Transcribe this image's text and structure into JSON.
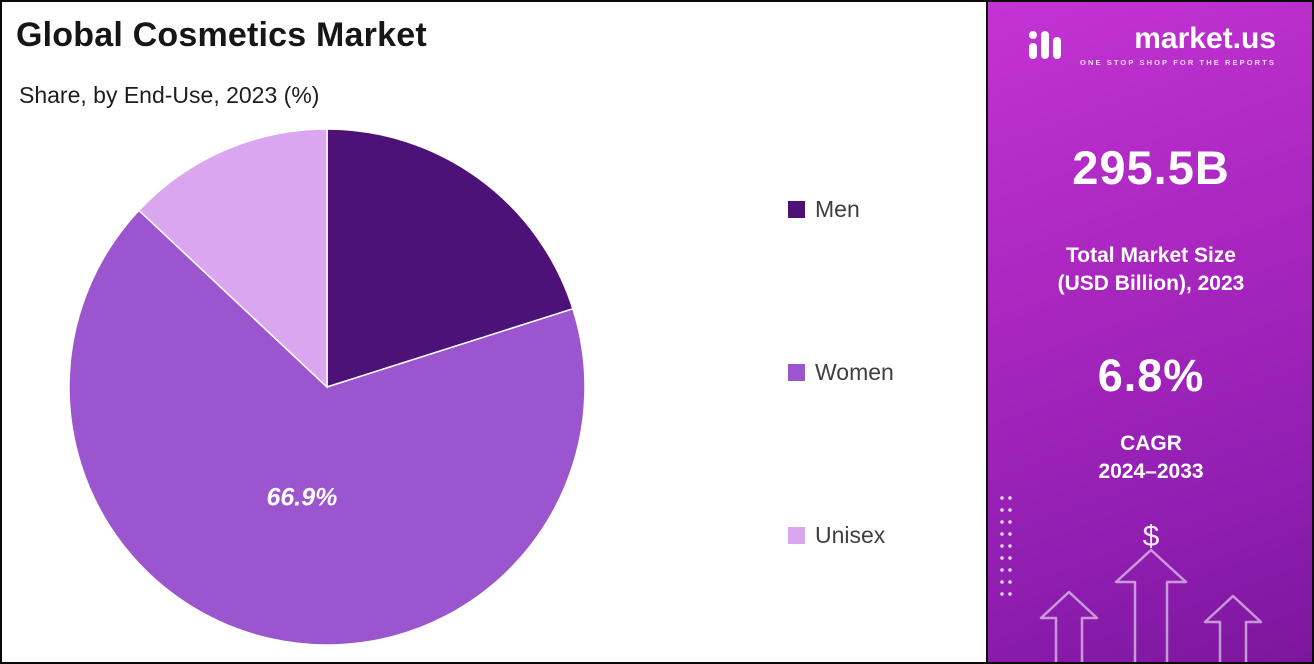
{
  "header": {
    "title": "Global Cosmetics Market",
    "subtitle": "Share, by End-Use, 2023 (%)"
  },
  "chart_data": {
    "type": "pie",
    "title": "Global Cosmetics Market",
    "subtitle": "Share, by End-Use, 2023 (%)",
    "unit": "%",
    "start_angle_deg": 0,
    "direction": "clockwise",
    "legend_position": "right",
    "slices": [
      {
        "label": "Men",
        "value": 20.1,
        "color": "#4c1277",
        "show_label": false,
        "data_label": ""
      },
      {
        "label": "Women",
        "value": 66.9,
        "color": "#9a55cf",
        "show_label": true,
        "data_label": "66.9%"
      },
      {
        "label": "Unisex",
        "value": 13.0,
        "color": "#d9a6ef",
        "show_label": false,
        "data_label": ""
      }
    ]
  },
  "sidebar": {
    "logo": {
      "brand": "market.us",
      "tagline": "ONE STOP SHOP FOR THE REPORTS"
    },
    "stat1": {
      "value": "295.5B",
      "label_line1": "Total Market Size",
      "label_line2": "(USD Billion), 2023"
    },
    "stat2": {
      "value": "6.8%",
      "label_line1": "CAGR",
      "label_line2": "2024–2033"
    },
    "dollar": "$"
  }
}
